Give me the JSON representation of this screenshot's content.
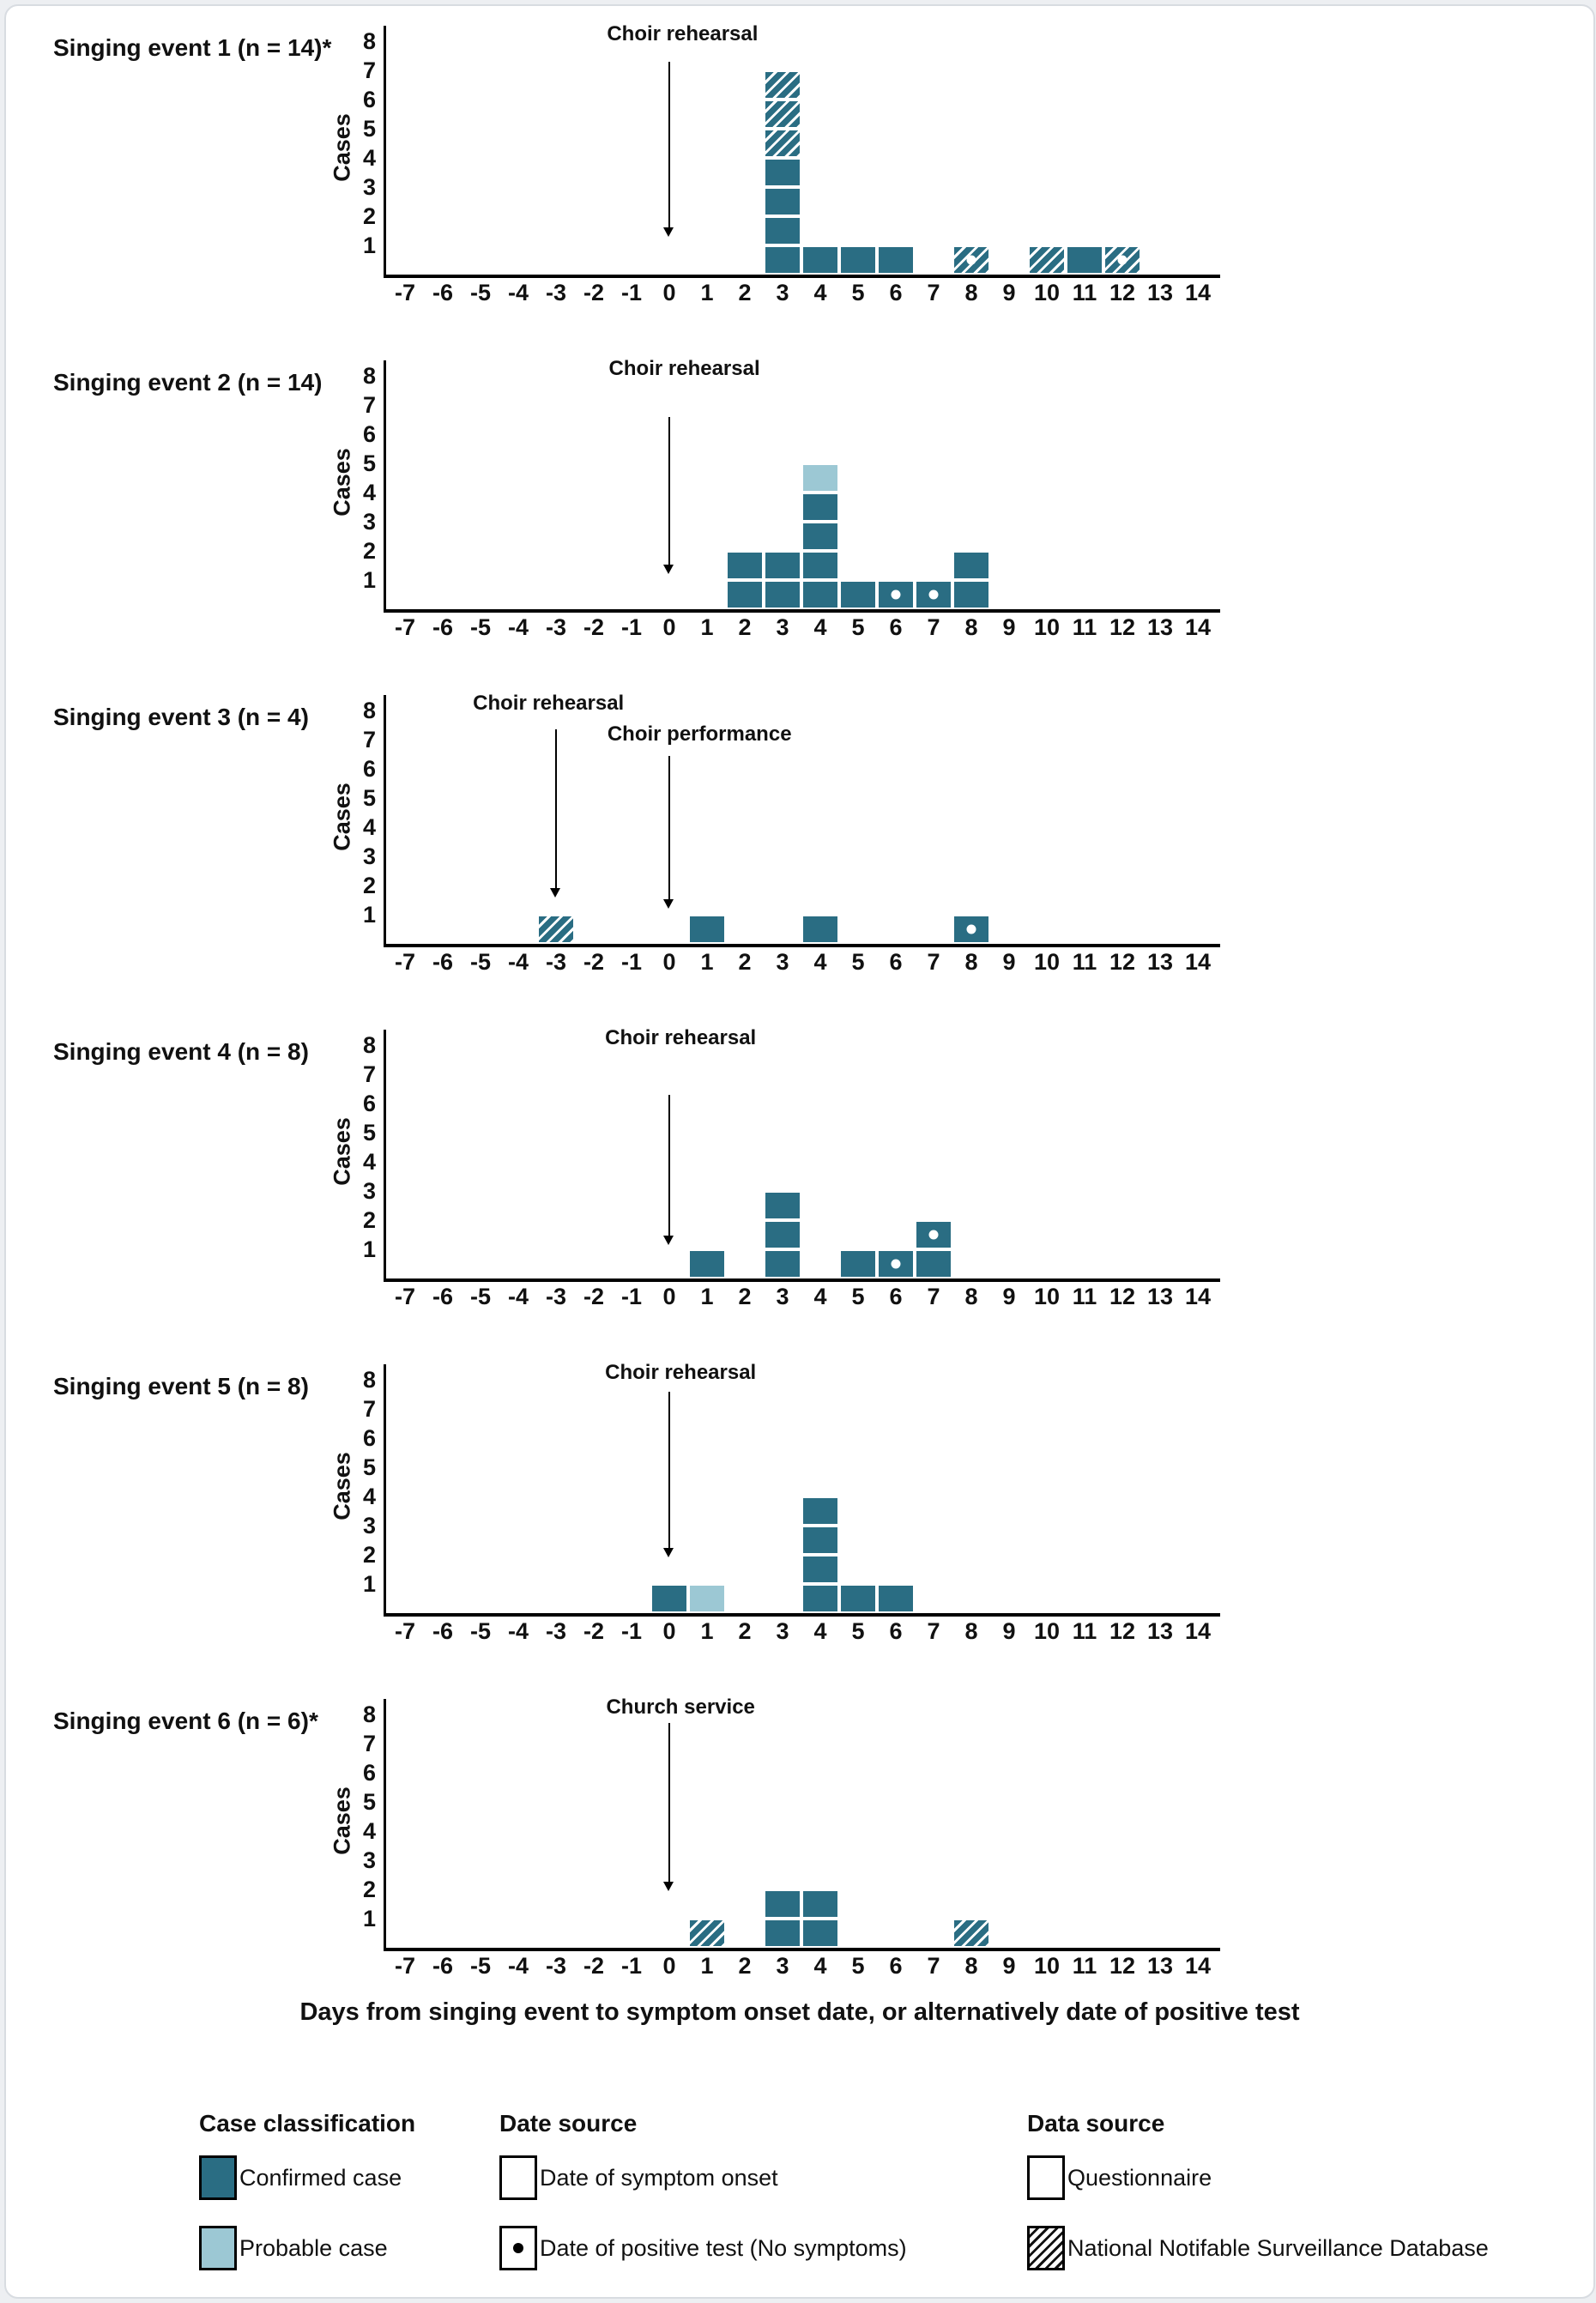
{
  "figure": {
    "caption": "Days from singing event to symptom onset date, or alternatively date of positive test",
    "colors": {
      "confirmed": "#2a6d83",
      "probable": "#9cc8d4",
      "axis": "#000000"
    },
    "y_ticks": [
      1,
      2,
      3,
      4,
      5,
      6,
      7,
      8
    ],
    "x_ticks": [
      -7,
      -6,
      -5,
      -4,
      -3,
      -2,
      -1,
      0,
      1,
      2,
      3,
      4,
      5,
      6,
      7,
      8,
      9,
      10,
      11,
      12,
      13,
      14
    ]
  },
  "chart_data": [
    {
      "type": "bar",
      "title": "Singing event 1 (n = 14)*",
      "ylabel": "Cases",
      "ylim": [
        0,
        8
      ],
      "x_range": [
        -7,
        14
      ],
      "annotations": [
        {
          "label": "Choir rehearsal",
          "arrow_day": 0,
          "label_day": 0.35,
          "label_row": 0,
          "from": 7.3,
          "to": 1.3
        }
      ],
      "bars": [
        {
          "day": 3,
          "blocks": [
            "confirmed",
            "confirmed",
            "confirmed",
            "confirmed",
            "confirmed-nndb",
            "confirmed-nndb",
            "confirmed-nndb"
          ]
        },
        {
          "day": 4,
          "blocks": [
            "confirmed"
          ]
        },
        {
          "day": 5,
          "blocks": [
            "confirmed"
          ]
        },
        {
          "day": 6,
          "blocks": [
            "confirmed"
          ]
        },
        {
          "day": 8,
          "blocks": [
            "confirmed-nndb-dot"
          ]
        },
        {
          "day": 10,
          "blocks": [
            "confirmed-nndb"
          ]
        },
        {
          "day": 11,
          "blocks": [
            "confirmed"
          ]
        },
        {
          "day": 12,
          "blocks": [
            "confirmed-nndb-dot"
          ]
        }
      ]
    },
    {
      "type": "bar",
      "title": "Singing event 2 (n = 14)",
      "ylabel": "Cases",
      "ylim": [
        0,
        8
      ],
      "x_range": [
        -7,
        14
      ],
      "annotations": [
        {
          "label": "Choir rehearsal",
          "arrow_day": 0,
          "label_day": 0.4,
          "label_row": 0,
          "from": 6.6,
          "to": 1.2
        }
      ],
      "bars": [
        {
          "day": 2,
          "blocks": [
            "confirmed",
            "confirmed"
          ]
        },
        {
          "day": 3,
          "blocks": [
            "confirmed",
            "confirmed"
          ]
        },
        {
          "day": 4,
          "blocks": [
            "confirmed",
            "confirmed",
            "confirmed",
            "confirmed",
            "probable"
          ]
        },
        {
          "day": 5,
          "blocks": [
            "confirmed"
          ]
        },
        {
          "day": 6,
          "blocks": [
            "confirmed-dot"
          ]
        },
        {
          "day": 7,
          "blocks": [
            "confirmed-dot"
          ]
        },
        {
          "day": 8,
          "blocks": [
            "confirmed",
            "confirmed"
          ]
        }
      ]
    },
    {
      "type": "bar",
      "title": "Singing event 3 (n = 4)",
      "ylabel": "Cases",
      "ylim": [
        0,
        8
      ],
      "x_range": [
        -7,
        14
      ],
      "annotations": [
        {
          "label": "Choir rehearsal",
          "arrow_day": -3,
          "label_day": -3.2,
          "label_row": 0,
          "from": 7.35,
          "to": 1.6
        },
        {
          "label": "Choir performance",
          "arrow_day": 0,
          "label_day": 0.8,
          "label_row": 1,
          "from": 6.45,
          "to": 1.2
        }
      ],
      "bars": [
        {
          "day": -3,
          "blocks": [
            "confirmed-nndb"
          ]
        },
        {
          "day": 1,
          "blocks": [
            "confirmed"
          ]
        },
        {
          "day": 4,
          "blocks": [
            "confirmed"
          ]
        },
        {
          "day": 8,
          "blocks": [
            "confirmed-dot"
          ]
        }
      ]
    },
    {
      "type": "bar",
      "title": "Singing event 4 (n = 8)",
      "ylabel": "Cases",
      "ylim": [
        0,
        8
      ],
      "x_range": [
        -7,
        14
      ],
      "annotations": [
        {
          "label": "Choir rehearsal",
          "arrow_day": 0,
          "label_day": 0.3,
          "label_row": 0,
          "from": 6.3,
          "to": 1.15
        }
      ],
      "bars": [
        {
          "day": 1,
          "blocks": [
            "confirmed"
          ]
        },
        {
          "day": 3,
          "blocks": [
            "confirmed",
            "confirmed",
            "confirmed"
          ]
        },
        {
          "day": 5,
          "blocks": [
            "confirmed"
          ]
        },
        {
          "day": 6,
          "blocks": [
            "confirmed-dot"
          ]
        },
        {
          "day": 7,
          "blocks": [
            "confirmed",
            "confirmed-dot"
          ]
        }
      ]
    },
    {
      "type": "bar",
      "title": "Singing event 5 (n = 8)",
      "ylabel": "Cases",
      "ylim": [
        0,
        8
      ],
      "x_range": [
        -7,
        14
      ],
      "annotations": [
        {
          "label": "Choir rehearsal",
          "arrow_day": 0,
          "label_day": 0.3,
          "label_row": 0,
          "from": 7.6,
          "to": 1.9
        }
      ],
      "bars": [
        {
          "day": 0,
          "blocks": [
            "confirmed"
          ]
        },
        {
          "day": 1,
          "blocks": [
            "probable"
          ]
        },
        {
          "day": 4,
          "blocks": [
            "confirmed",
            "confirmed",
            "confirmed",
            "confirmed"
          ]
        },
        {
          "day": 5,
          "blocks": [
            "confirmed"
          ]
        },
        {
          "day": 6,
          "blocks": [
            "confirmed"
          ]
        }
      ]
    },
    {
      "type": "bar",
      "title": "Singing event 6 (n = 6)*",
      "ylabel": "Cases",
      "ylim": [
        0,
        8
      ],
      "x_range": [
        -7,
        14
      ],
      "annotations": [
        {
          "label": "Church service",
          "arrow_day": 0,
          "label_day": 0.3,
          "label_row": 0,
          "from": 7.7,
          "to": 1.95
        }
      ],
      "bars": [
        {
          "day": 1,
          "blocks": [
            "confirmed-nndb"
          ]
        },
        {
          "day": 3,
          "blocks": [
            "confirmed",
            "confirmed"
          ]
        },
        {
          "day": 4,
          "blocks": [
            "confirmed",
            "confirmed"
          ]
        },
        {
          "day": 8,
          "blocks": [
            "confirmed-nndb"
          ]
        }
      ]
    }
  ],
  "legend": {
    "groups": [
      {
        "title": "Case classification",
        "items": [
          {
            "label": "Confirmed case",
            "swatch": "confirmed"
          },
          {
            "label": "Probable case",
            "swatch": "probable"
          }
        ]
      },
      {
        "title": "Date source",
        "items": [
          {
            "label": "Date of symptom onset",
            "swatch": "plain"
          },
          {
            "label": "Date of positive test (No symptoms)",
            "swatch": "plain-dot"
          }
        ]
      },
      {
        "title": "Data source",
        "items": [
          {
            "label": "Questionnaire",
            "swatch": "plain"
          },
          {
            "label": "National Notifable Surveillance Database",
            "swatch": "hatch-black"
          }
        ]
      }
    ]
  }
}
